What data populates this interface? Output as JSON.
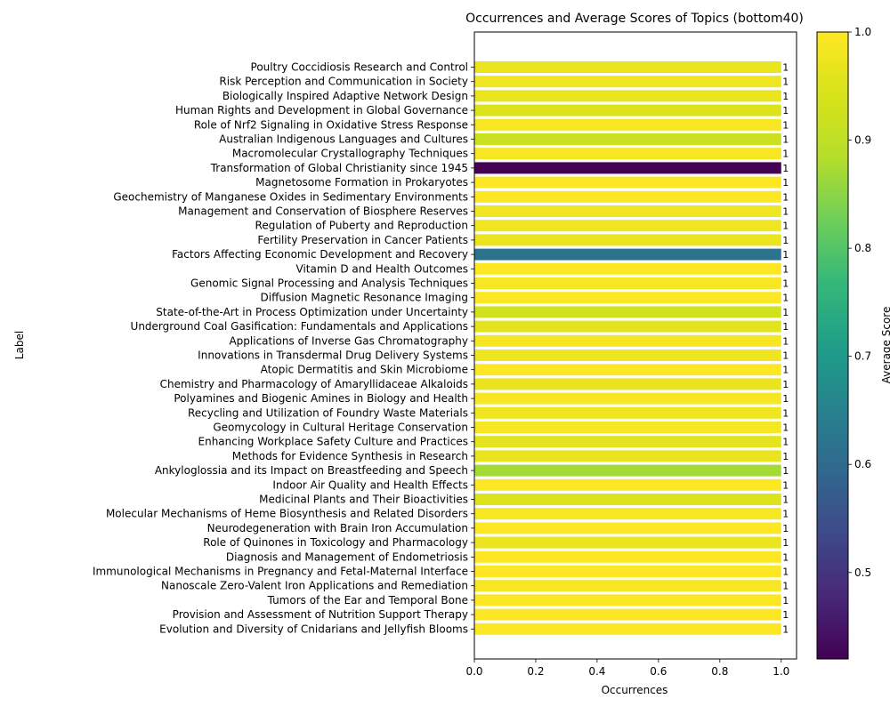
{
  "chart_data": {
    "type": "bar",
    "orientation": "horizontal",
    "title": "Occurrences and Average Scores of Topics (bottom40)",
    "xlabel": "Occurrences",
    "ylabel": "Label",
    "xlim": [
      0,
      1.05
    ],
    "xticks": [
      "0.0",
      "0.2",
      "0.4",
      "0.6",
      "0.8",
      "1.0"
    ],
    "colorbar": {
      "label": "Average Score",
      "range": [
        0.42,
        1.0
      ],
      "ticks": [
        "0.5",
        "0.6",
        "0.7",
        "0.8",
        "0.9",
        "1.0"
      ],
      "colormap": "viridis"
    },
    "categories": [
      "Poultry Coccidiosis Research and Control",
      "Risk Perception and Communication in Society",
      "Biologically Inspired Adaptive Network Design",
      "Human Rights and Development in Global Governance",
      "Role of Nrf2 Signaling in Oxidative Stress Response",
      "Australian Indigenous Languages and Cultures",
      "Macromolecular Crystallography Techniques",
      "Transformation of Global Christianity since 1945",
      "Magnetosome Formation in Prokaryotes",
      "Geochemistry of Manganese Oxides in Sedimentary Environments",
      "Management and Conservation of Biosphere Reserves",
      "Regulation of Puberty and Reproduction",
      "Fertility Preservation in Cancer Patients",
      "Factors Affecting Economic Development and Recovery",
      "Vitamin D and Health Outcomes",
      "Genomic Signal Processing and Analysis Techniques",
      "Diffusion Magnetic Resonance Imaging",
      "State-of-the-Art in Process Optimization under Uncertainty",
      "Underground Coal Gasification: Fundamentals and Applications",
      "Applications of Inverse Gas Chromatography",
      "Innovations in Transdermal Drug Delivery Systems",
      "Atopic Dermatitis and Skin Microbiome",
      "Chemistry and Pharmacology of Amaryllidaceae Alkaloids",
      "Polyamines and Biogenic Amines in Biology and Health",
      "Recycling and Utilization of Foundry Waste Materials",
      "Geomycology in Cultural Heritage Conservation",
      "Enhancing Workplace Safety Culture and Practices",
      "Methods for Evidence Synthesis in Research",
      "Ankyloglossia and its Impact on Breastfeeding and Speech",
      "Indoor Air Quality and Health Effects",
      "Medicinal Plants and Their Bioactivities",
      "Molecular Mechanisms of Heme Biosynthesis and Related Disorders",
      "Neurodegeneration with Brain Iron Accumulation",
      "Role of Quinones in Toxicology and Pharmacology",
      "Diagnosis and Management of Endometriosis",
      "Immunological Mechanisms in Pregnancy and Fetal-Maternal Interface",
      "Nanoscale Zero-Valent Iron Applications and Remediation",
      "Tumors of the Ear and Temporal Bone",
      "Provision and Assessment of Nutrition Support Therapy",
      "Evolution and Diversity of Cnidarians and Jellyfish Blooms"
    ],
    "values": [
      1,
      1,
      1,
      1,
      1,
      1,
      1,
      1,
      1,
      1,
      1,
      1,
      1,
      1,
      1,
      1,
      1,
      1,
      1,
      1,
      1,
      1,
      1,
      1,
      1,
      1,
      1,
      1,
      1,
      1,
      1,
      1,
      1,
      1,
      1,
      1,
      1,
      1,
      1,
      1
    ],
    "value_labels": [
      "1",
      "1",
      "1",
      "1",
      "1",
      "1",
      "1",
      "1",
      "1",
      "1",
      "1",
      "1",
      "1",
      "1",
      "1",
      "1",
      "1",
      "1",
      "1",
      "1",
      "1",
      "1",
      "1",
      "1",
      "1",
      "1",
      "1",
      "1",
      "1",
      "1",
      "1",
      "1",
      "1",
      "1",
      "1",
      "1",
      "1",
      "1",
      "1",
      "1"
    ],
    "avg_scores": [
      0.97,
      0.98,
      0.97,
      0.95,
      0.99,
      0.92,
      0.99,
      0.42,
      1.0,
      1.0,
      0.98,
      0.98,
      0.97,
      0.62,
      1.0,
      0.99,
      1.0,
      0.93,
      0.96,
      0.99,
      0.98,
      1.0,
      0.97,
      0.99,
      0.98,
      0.99,
      0.96,
      0.97,
      0.87,
      1.0,
      0.95,
      0.99,
      1.0,
      0.97,
      1.0,
      1.0,
      0.99,
      1.0,
      1.0,
      1.0
    ]
  }
}
